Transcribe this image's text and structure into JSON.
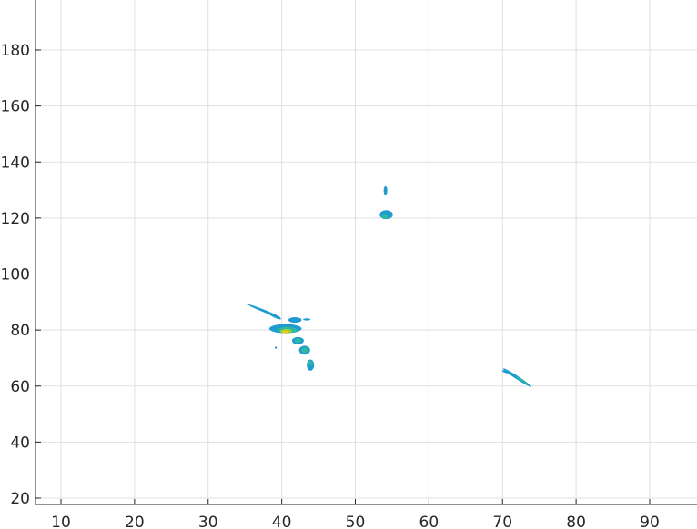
{
  "chart_data": {
    "type": "contour",
    "title": "",
    "xlabel": "",
    "ylabel": "",
    "xlim": [
      7,
      96
    ],
    "ylim": [
      18,
      198
    ],
    "xticks": [
      10,
      20,
      30,
      40,
      50,
      60,
      70,
      80,
      90
    ],
    "yticks": [
      20,
      40,
      60,
      80,
      100,
      120,
      140,
      160,
      180
    ],
    "grid": true,
    "colors": {
      "level_low": "#1f9bd0",
      "level_mid": "#2eb8a0",
      "level_high": "#9ccd3c",
      "level_peak": "#e0d02a",
      "grid": "#dfdfdf",
      "axis": "#262626"
    },
    "contour_blobs": [
      {
        "level": "low",
        "center": [
          54.1,
          129.8
        ],
        "size": [
          0.25,
          1.6
        ],
        "angle": 0
      },
      {
        "level": "low",
        "center": [
          54.2,
          121.2
        ],
        "size": [
          0.9,
          1.6
        ],
        "angle": 0
      },
      {
        "level": "mid",
        "center": [
          54.0,
          120.5
        ],
        "size": [
          0.45,
          0.9
        ],
        "angle": 0
      },
      {
        "level": "low",
        "center": [
          37.6,
          86.8
        ],
        "size": [
          2.4,
          0.45
        ],
        "angle": 22
      },
      {
        "level": "low",
        "center": [
          40.5,
          80.5
        ],
        "size": [
          2.2,
          1.6
        ],
        "angle": 0
      },
      {
        "level": "mid",
        "center": [
          40.8,
          80.0
        ],
        "size": [
          1.3,
          1.1
        ],
        "angle": 0
      },
      {
        "level": "high",
        "center": [
          40.6,
          79.6
        ],
        "size": [
          0.8,
          0.8
        ],
        "angle": 0
      },
      {
        "level": "peak",
        "center": [
          40.5,
          79.4
        ],
        "size": [
          0.45,
          0.5
        ],
        "angle": 0
      },
      {
        "level": "low",
        "center": [
          41.8,
          83.6
        ],
        "size": [
          0.9,
          1.0
        ],
        "angle": 0
      },
      {
        "level": "low",
        "center": [
          42.2,
          76.2
        ],
        "size": [
          0.8,
          1.3
        ],
        "angle": 0
      },
      {
        "level": "mid",
        "center": [
          42.2,
          76.2
        ],
        "size": [
          0.45,
          0.8
        ],
        "angle": 0
      },
      {
        "level": "low",
        "center": [
          43.1,
          72.8
        ],
        "size": [
          0.75,
          1.6
        ],
        "angle": 0
      },
      {
        "level": "mid",
        "center": [
          43.1,
          72.8
        ],
        "size": [
          0.45,
          1.0
        ],
        "angle": 0
      },
      {
        "level": "low",
        "center": [
          43.9,
          67.5
        ],
        "size": [
          0.5,
          2.0
        ],
        "angle": 0
      },
      {
        "level": "mid",
        "center": [
          43.9,
          68.2
        ],
        "size": [
          0.3,
          0.9
        ],
        "angle": 0
      },
      {
        "level": "low",
        "center": [
          39.0,
          85.0
        ],
        "size": [
          1.0,
          0.5
        ],
        "angle": 25
      },
      {
        "level": "low",
        "center": [
          72.0,
          63.0
        ],
        "size": [
          2.3,
          0.6
        ],
        "angle": 33
      },
      {
        "level": "mid",
        "center": [
          72.6,
          62.2
        ],
        "size": [
          0.9,
          0.35
        ],
        "angle": 33
      },
      {
        "level": "low",
        "center": [
          70.4,
          65.1
        ],
        "size": [
          0.5,
          0.3
        ],
        "angle": 20
      },
      {
        "level": "low",
        "center": [
          39.2,
          73.7
        ],
        "size": [
          0.15,
          0.35
        ],
        "angle": 0
      },
      {
        "level": "low",
        "center": [
          43.4,
          83.8
        ],
        "size": [
          0.5,
          0.2
        ],
        "angle": 0
      }
    ]
  }
}
